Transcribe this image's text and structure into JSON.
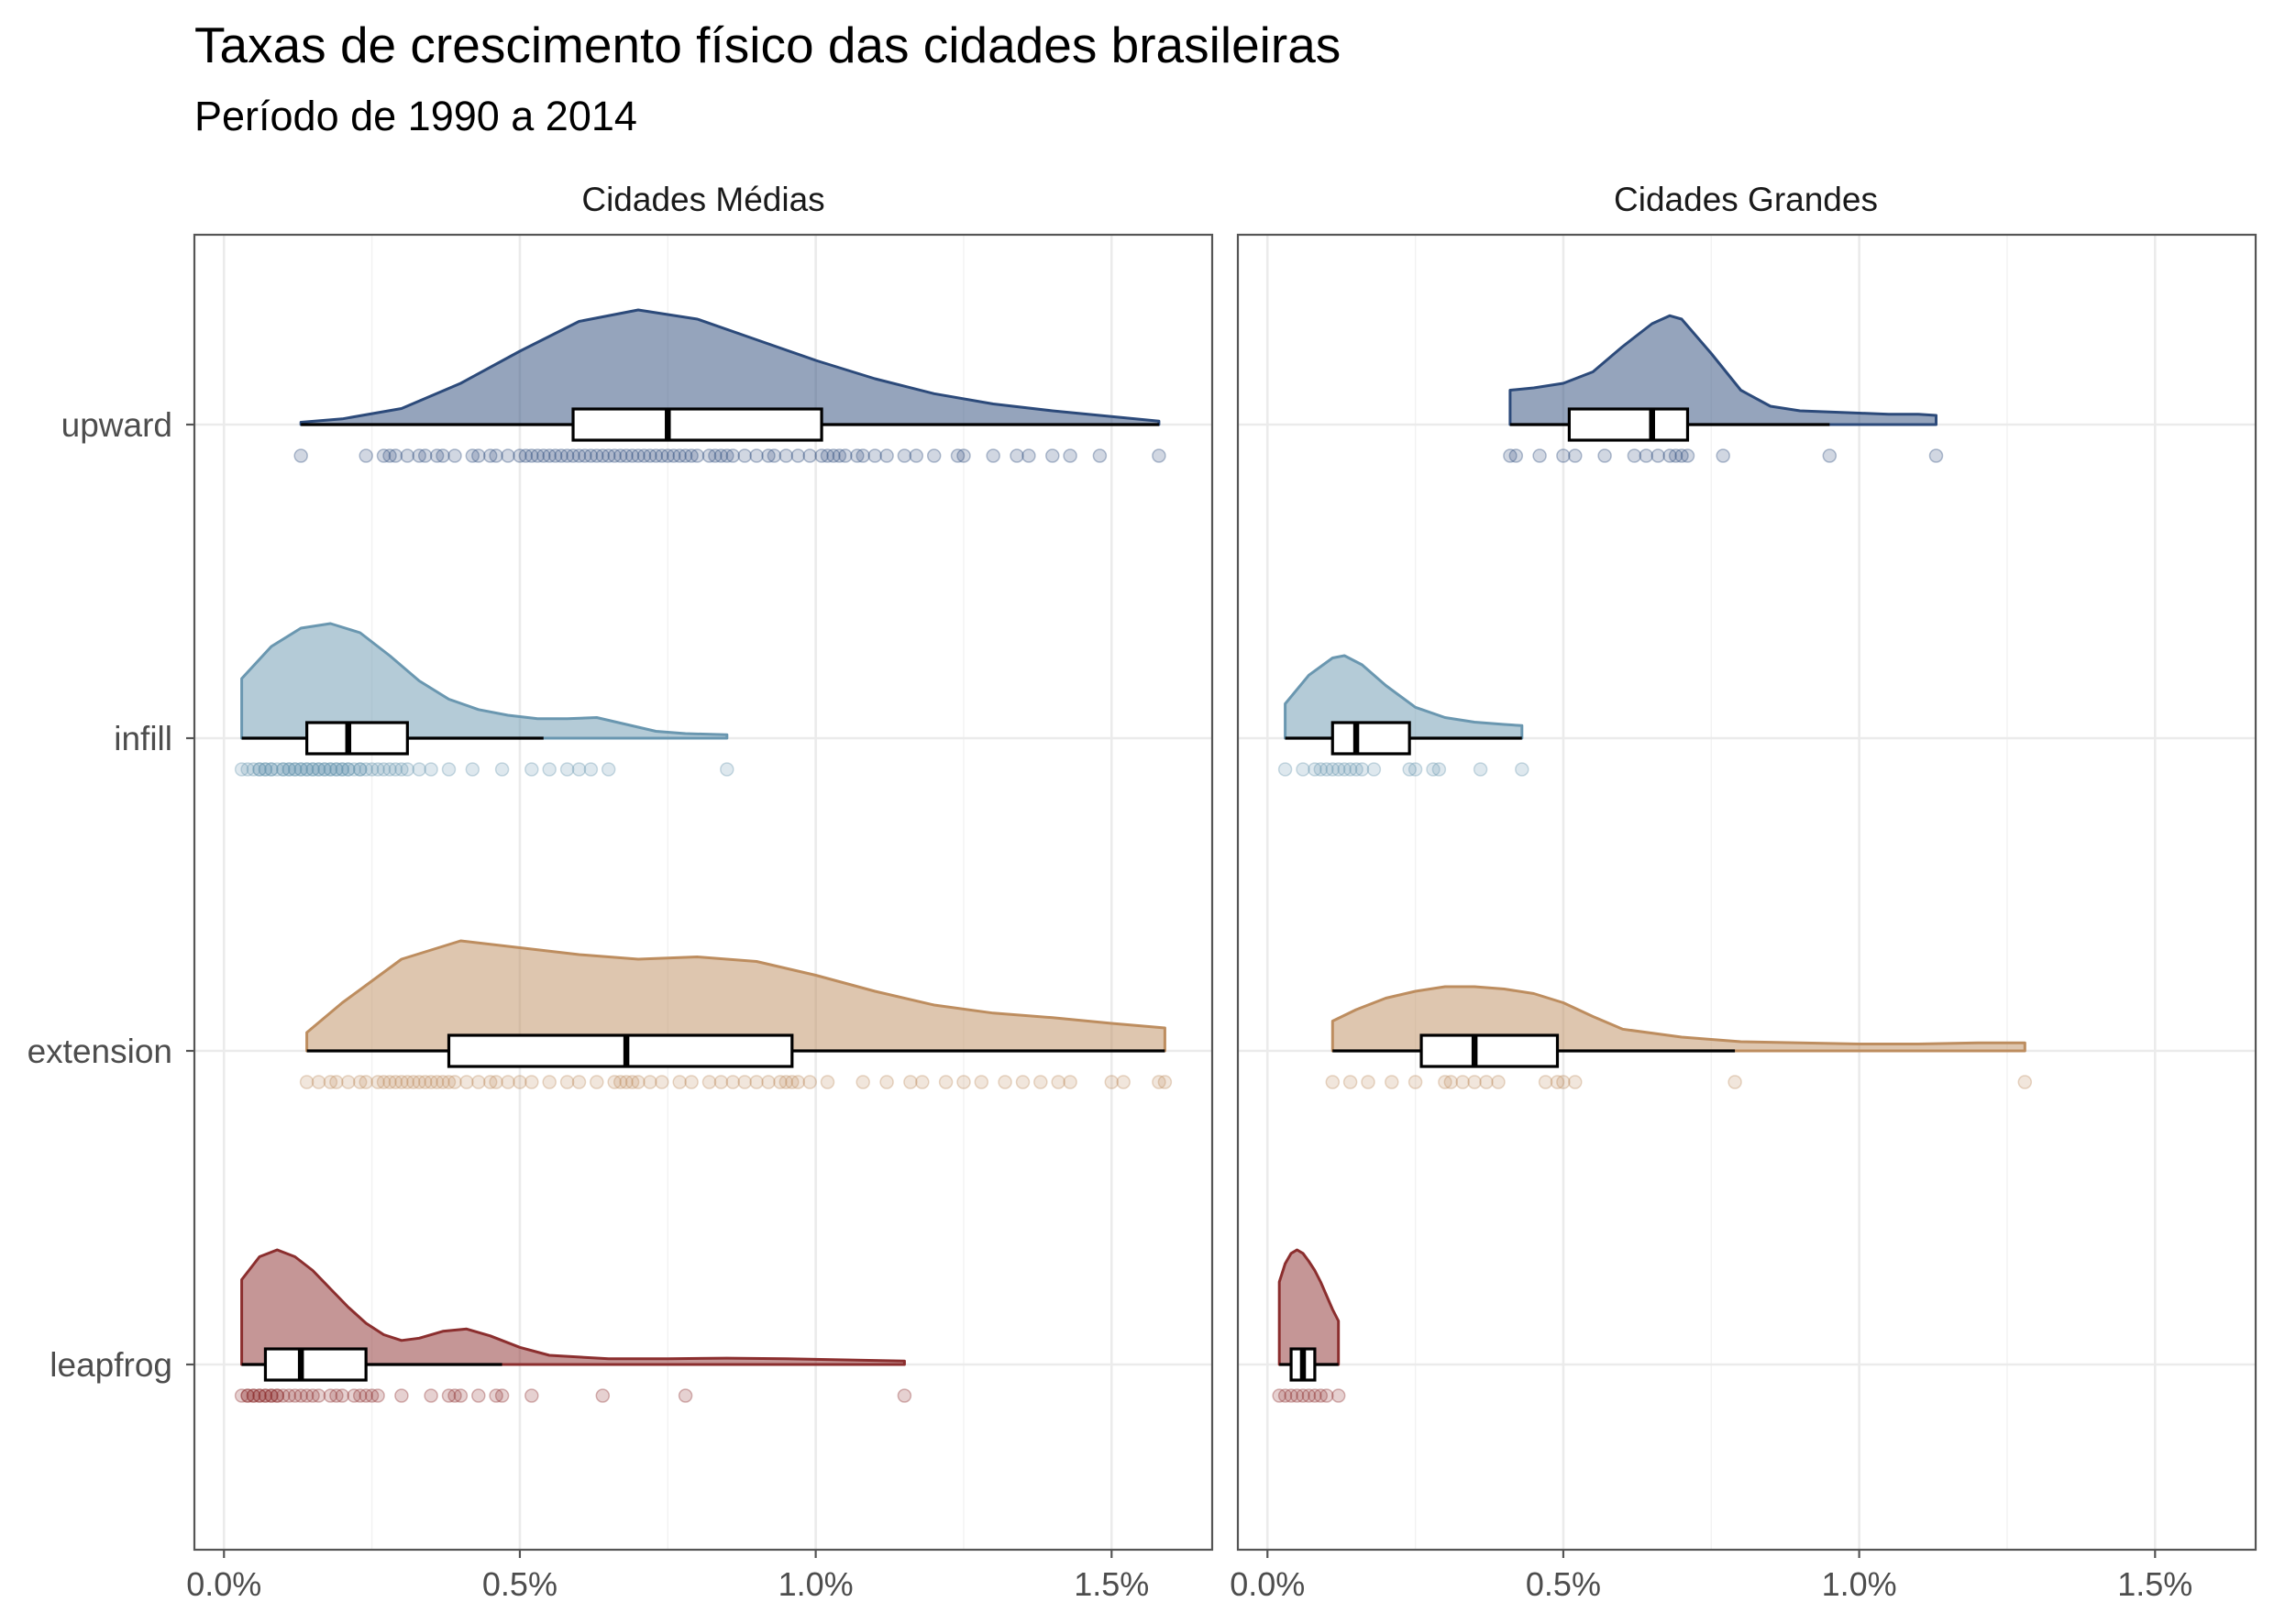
{
  "chart_data": {
    "type": "raincloud",
    "title": "Taxas de crescimento físico das cidades brasileiras",
    "subtitle": "Período de 1990 a 2014",
    "xlabel": "",
    "ylabel": "",
    "xlim": [
      -0.0005,
      0.0167
    ],
    "x_ticks": [
      0,
      0.005,
      0.01,
      0.015
    ],
    "x_tick_labels": [
      "0.0%",
      "0.5%",
      "1.0%",
      "1.5%"
    ],
    "categories": [
      "upward",
      "infill",
      "extension",
      "leapfrog"
    ],
    "colors": {
      "upward": "#2c4a7a",
      "infill": "#6a97b0",
      "extension": "#bd8d5f",
      "leapfrog": "#8b2e2e"
    },
    "panels": [
      {
        "name": "Cidades Médias",
        "groups": [
          {
            "category": "upward",
            "box": {
              "min": 0.0013,
              "q1": 0.0059,
              "median": 0.0075,
              "q3": 0.0101,
              "max": 0.0158
            },
            "density": [
              [
                0.0013,
                0.02
              ],
              [
                0.002,
                0.05
              ],
              [
                0.003,
                0.14
              ],
              [
                0.004,
                0.36
              ],
              [
                0.005,
                0.64
              ],
              [
                0.006,
                0.9
              ],
              [
                0.007,
                1.0
              ],
              [
                0.008,
                0.92
              ],
              [
                0.009,
                0.74
              ],
              [
                0.01,
                0.56
              ],
              [
                0.011,
                0.4
              ],
              [
                0.012,
                0.27
              ],
              [
                0.013,
                0.18
              ],
              [
                0.014,
                0.12
              ],
              [
                0.015,
                0.07
              ],
              [
                0.0158,
                0.03
              ]
            ],
            "points": [
              0.0013,
              0.0024,
              0.0027,
              0.0028,
              0.0029,
              0.0031,
              0.0033,
              0.0034,
              0.0036,
              0.0037,
              0.0039,
              0.0042,
              0.0043,
              0.0045,
              0.0046,
              0.0048,
              0.005,
              0.0051,
              0.0052,
              0.0053,
              0.0054,
              0.0055,
              0.0056,
              0.0057,
              0.0058,
              0.0059,
              0.006,
              0.0061,
              0.0062,
              0.0063,
              0.0064,
              0.0065,
              0.0066,
              0.0067,
              0.0068,
              0.0069,
              0.007,
              0.0071,
              0.0072,
              0.0073,
              0.0074,
              0.0075,
              0.0076,
              0.0077,
              0.0078,
              0.0079,
              0.008,
              0.0082,
              0.0083,
              0.0084,
              0.0085,
              0.0086,
              0.0088,
              0.009,
              0.0092,
              0.0093,
              0.0095,
              0.0097,
              0.0099,
              0.0101,
              0.0102,
              0.0103,
              0.0104,
              0.0105,
              0.0107,
              0.0108,
              0.011,
              0.0112,
              0.0115,
              0.0117,
              0.012,
              0.0124,
              0.0125,
              0.013,
              0.0134,
              0.0136,
              0.014,
              0.0143,
              0.0148,
              0.0158
            ]
          },
          {
            "category": "infill",
            "box": {
              "min": 0.0003,
              "q1": 0.0014,
              "median": 0.0021,
              "q3": 0.0031,
              "max": 0.0054
            },
            "density": [
              [
                0.0003,
                0.52
              ],
              [
                0.0008,
                0.8
              ],
              [
                0.0013,
                0.96
              ],
              [
                0.0018,
                1.0
              ],
              [
                0.0023,
                0.92
              ],
              [
                0.0028,
                0.72
              ],
              [
                0.0033,
                0.5
              ],
              [
                0.0038,
                0.34
              ],
              [
                0.0043,
                0.25
              ],
              [
                0.0048,
                0.2
              ],
              [
                0.0053,
                0.17
              ],
              [
                0.0058,
                0.17
              ],
              [
                0.0063,
                0.18
              ],
              [
                0.0068,
                0.12
              ],
              [
                0.0073,
                0.06
              ],
              [
                0.0078,
                0.04
              ],
              [
                0.0085,
                0.03
              ]
            ],
            "points": [
              0.0003,
              0.0004,
              0.0005,
              0.0006,
              0.0006,
              0.0007,
              0.0007,
              0.0008,
              0.0008,
              0.0009,
              0.001,
              0.001,
              0.0011,
              0.0011,
              0.0012,
              0.0012,
              0.0013,
              0.0013,
              0.0014,
              0.0014,
              0.0015,
              0.0015,
              0.0016,
              0.0016,
              0.0017,
              0.0017,
              0.0018,
              0.0018,
              0.0019,
              0.0019,
              0.002,
              0.002,
              0.0021,
              0.0021,
              0.0022,
              0.0023,
              0.0023,
              0.0024,
              0.0025,
              0.0026,
              0.0027,
              0.0028,
              0.0029,
              0.003,
              0.0031,
              0.0033,
              0.0035,
              0.0038,
              0.0042,
              0.0047,
              0.0052,
              0.0055,
              0.0058,
              0.006,
              0.0062,
              0.0065,
              0.0085
            ]
          },
          {
            "category": "extension",
            "box": {
              "min": 0.0014,
              "q1": 0.0038,
              "median": 0.0068,
              "q3": 0.0096,
              "max": 0.0159
            },
            "density": [
              [
                0.0014,
                0.16
              ],
              [
                0.002,
                0.42
              ],
              [
                0.003,
                0.8
              ],
              [
                0.004,
                0.96
              ],
              [
                0.005,
                0.9
              ],
              [
                0.006,
                0.84
              ],
              [
                0.007,
                0.8
              ],
              [
                0.008,
                0.82
              ],
              [
                0.009,
                0.78
              ],
              [
                0.01,
                0.66
              ],
              [
                0.011,
                0.52
              ],
              [
                0.012,
                0.4
              ],
              [
                0.013,
                0.33
              ],
              [
                0.014,
                0.29
              ],
              [
                0.015,
                0.24
              ],
              [
                0.0159,
                0.2
              ]
            ],
            "points": [
              0.0014,
              0.0016,
              0.0018,
              0.0019,
              0.0021,
              0.0023,
              0.0024,
              0.0026,
              0.0027,
              0.0028,
              0.0029,
              0.003,
              0.0031,
              0.0032,
              0.0033,
              0.0034,
              0.0035,
              0.0036,
              0.0037,
              0.0038,
              0.0039,
              0.0041,
              0.0043,
              0.0045,
              0.0046,
              0.0048,
              0.005,
              0.0052,
              0.0055,
              0.0058,
              0.006,
              0.0063,
              0.0066,
              0.0067,
              0.0068,
              0.0069,
              0.007,
              0.0072,
              0.0074,
              0.0077,
              0.0079,
              0.0082,
              0.0084,
              0.0086,
              0.0088,
              0.009,
              0.0092,
              0.0094,
              0.0095,
              0.0096,
              0.0097,
              0.0099,
              0.0102,
              0.0108,
              0.0112,
              0.0116,
              0.0118,
              0.0122,
              0.0125,
              0.0128,
              0.0132,
              0.0135,
              0.0138,
              0.0141,
              0.0143,
              0.015,
              0.0152,
              0.0158,
              0.0159
            ]
          },
          {
            "category": "leapfrog",
            "box": {
              "min": 0.0003,
              "q1": 0.0007,
              "median": 0.0013,
              "q3": 0.0024,
              "max": 0.0047
            },
            "density": [
              [
                0.0003,
                0.74
              ],
              [
                0.0006,
                0.94
              ],
              [
                0.0009,
                1.0
              ],
              [
                0.0012,
                0.94
              ],
              [
                0.0015,
                0.82
              ],
              [
                0.0018,
                0.66
              ],
              [
                0.0021,
                0.5
              ],
              [
                0.0024,
                0.36
              ],
              [
                0.0027,
                0.26
              ],
              [
                0.003,
                0.21
              ],
              [
                0.0033,
                0.23
              ],
              [
                0.0037,
                0.29
              ],
              [
                0.0041,
                0.31
              ],
              [
                0.0045,
                0.25
              ],
              [
                0.005,
                0.15
              ],
              [
                0.0055,
                0.08
              ],
              [
                0.0065,
                0.05
              ],
              [
                0.0075,
                0.05
              ],
              [
                0.0085,
                0.055
              ],
              [
                0.0095,
                0.05
              ],
              [
                0.0105,
                0.04
              ],
              [
                0.0115,
                0.03
              ]
            ],
            "points": [
              0.0003,
              0.0004,
              0.0004,
              0.0005,
              0.0005,
              0.0006,
              0.0006,
              0.0007,
              0.0007,
              0.0008,
              0.0008,
              0.0009,
              0.0009,
              0.001,
              0.0011,
              0.0012,
              0.0013,
              0.0014,
              0.0015,
              0.0016,
              0.0018,
              0.0019,
              0.002,
              0.0022,
              0.0023,
              0.0024,
              0.0025,
              0.0026,
              0.003,
              0.0035,
              0.0038,
              0.0039,
              0.004,
              0.0043,
              0.0046,
              0.0047,
              0.0052,
              0.0064,
              0.0078,
              0.0115
            ]
          }
        ]
      },
      {
        "name": "Cidades Grandes",
        "groups": [
          {
            "category": "upward",
            "box": {
              "min": 0.0041,
              "q1": 0.0051,
              "median": 0.0065,
              "q3": 0.0071,
              "max": 0.0095
            },
            "density": [
              [
                0.0041,
                0.3
              ],
              [
                0.0045,
                0.32
              ],
              [
                0.005,
                0.36
              ],
              [
                0.0055,
                0.46
              ],
              [
                0.006,
                0.68
              ],
              [
                0.0065,
                0.88
              ],
              [
                0.0068,
                0.95
              ],
              [
                0.007,
                0.92
              ],
              [
                0.0075,
                0.62
              ],
              [
                0.008,
                0.3
              ],
              [
                0.0085,
                0.16
              ],
              [
                0.009,
                0.12
              ],
              [
                0.01,
                0.1
              ],
              [
                0.0105,
                0.09
              ],
              [
                0.011,
                0.09
              ],
              [
                0.0113,
                0.08
              ]
            ],
            "points": [
              0.0041,
              0.0042,
              0.0046,
              0.005,
              0.0052,
              0.0057,
              0.0062,
              0.0064,
              0.0066,
              0.0068,
              0.0069,
              0.007,
              0.0071,
              0.0077,
              0.0095,
              0.0113
            ]
          },
          {
            "category": "infill",
            "box": {
              "min": 0.0003,
              "q1": 0.0011,
              "median": 0.0015,
              "q3": 0.0024,
              "max": 0.0043
            },
            "density": [
              [
                0.0003,
                0.3
              ],
              [
                0.0007,
                0.55
              ],
              [
                0.0011,
                0.7
              ],
              [
                0.0013,
                0.72
              ],
              [
                0.0016,
                0.64
              ],
              [
                0.002,
                0.46
              ],
              [
                0.0025,
                0.27
              ],
              [
                0.003,
                0.18
              ],
              [
                0.0035,
                0.14
              ],
              [
                0.004,
                0.12
              ],
              [
                0.0043,
                0.11
              ]
            ],
            "points": [
              0.0003,
              0.0006,
              0.0008,
              0.0009,
              0.001,
              0.0011,
              0.0012,
              0.0013,
              0.0014,
              0.0015,
              0.0016,
              0.0018,
              0.0024,
              0.0025,
              0.0028,
              0.0029,
              0.0036,
              0.0043
            ]
          },
          {
            "category": "extension",
            "box": {
              "min": 0.0011,
              "q1": 0.0026,
              "median": 0.0035,
              "q3": 0.0049,
              "max": 0.0079
            },
            "density": [
              [
                0.0011,
                0.26
              ],
              [
                0.0015,
                0.36
              ],
              [
                0.002,
                0.46
              ],
              [
                0.0025,
                0.52
              ],
              [
                0.003,
                0.56
              ],
              [
                0.0035,
                0.56
              ],
              [
                0.004,
                0.54
              ],
              [
                0.0045,
                0.5
              ],
              [
                0.005,
                0.42
              ],
              [
                0.0055,
                0.3
              ],
              [
                0.006,
                0.19
              ],
              [
                0.007,
                0.12
              ],
              [
                0.008,
                0.08
              ],
              [
                0.009,
                0.07
              ],
              [
                0.01,
                0.06
              ],
              [
                0.011,
                0.06
              ],
              [
                0.012,
                0.07
              ],
              [
                0.0128,
                0.07
              ]
            ],
            "points": [
              0.0011,
              0.0014,
              0.0017,
              0.0021,
              0.0025,
              0.003,
              0.0031,
              0.0033,
              0.0035,
              0.0037,
              0.0039,
              0.0047,
              0.0049,
              0.005,
              0.0052,
              0.0079,
              0.0128
            ]
          },
          {
            "category": "leapfrog",
            "box": {
              "min": 0.0002,
              "q1": 0.0004,
              "median": 0.0006,
              "q3": 0.0008,
              "max": 0.0012
            },
            "density": [
              [
                0.0002,
                0.72
              ],
              [
                0.0003,
                0.88
              ],
              [
                0.0004,
                0.97
              ],
              [
                0.0005,
                1.0
              ],
              [
                0.0006,
                0.97
              ],
              [
                0.0007,
                0.9
              ],
              [
                0.0008,
                0.82
              ],
              [
                0.0009,
                0.72
              ],
              [
                0.001,
                0.6
              ],
              [
                0.0011,
                0.48
              ],
              [
                0.0012,
                0.38
              ]
            ],
            "points": [
              0.0002,
              0.0003,
              0.0004,
              0.0005,
              0.0006,
              0.0007,
              0.0008,
              0.0009,
              0.001,
              0.0012
            ]
          }
        ]
      }
    ]
  }
}
